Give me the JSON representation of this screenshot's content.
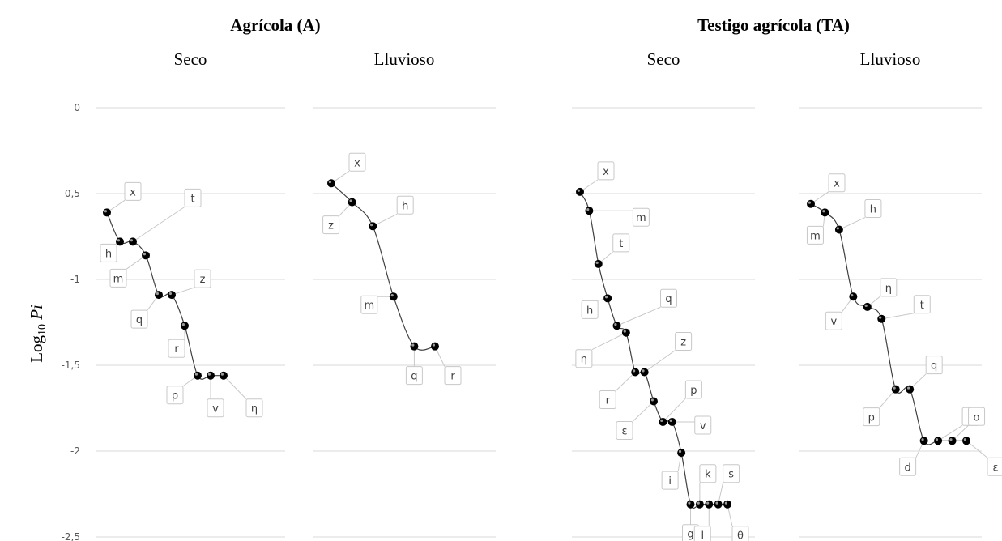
{
  "chart_data": {
    "type": "line",
    "ylabel_prefix": "Log",
    "ylabel_sub": "10",
    "ylabel_var": "Pi",
    "yticks": [
      "0",
      "-0,5",
      "-1",
      "-1,5",
      "-2",
      "-2,5"
    ],
    "ylim": [
      -2.5,
      0
    ],
    "grid": true,
    "groups": [
      {
        "title": "Agrícola (A)",
        "panels": [
          0,
          1
        ]
      },
      {
        "title": "Testigo agrícola (TA)",
        "panels": [
          2,
          3
        ]
      }
    ],
    "panels": [
      {
        "title": "Seco",
        "points": [
          {
            "label": "x",
            "y": -0.61
          },
          {
            "label": "h",
            "y": -0.78
          },
          {
            "label": "t",
            "y": -0.78
          },
          {
            "label": "m",
            "y": -0.86
          },
          {
            "label": "q",
            "y": -1.09
          },
          {
            "label": "z",
            "y": -1.09
          },
          {
            "label": "r",
            "y": -1.27
          },
          {
            "label": "p",
            "y": -1.56
          },
          {
            "label": "v",
            "y": -1.56
          },
          {
            "label": "η",
            "y": -1.56
          }
        ]
      },
      {
        "title": "Lluvioso",
        "points": [
          {
            "label": "x",
            "y": -0.44
          },
          {
            "label": "z",
            "y": -0.55
          },
          {
            "label": "h",
            "y": -0.69
          },
          {
            "label": "m",
            "y": -1.1
          },
          {
            "label": "q",
            "y": -1.39
          },
          {
            "label": "r",
            "y": -1.39
          }
        ]
      },
      {
        "title": "Seco",
        "points": [
          {
            "label": "x",
            "y": -0.49
          },
          {
            "label": "m",
            "y": -0.6
          },
          {
            "label": "t",
            "y": -0.91
          },
          {
            "label": "h",
            "y": -1.11
          },
          {
            "label": "q",
            "y": -1.27
          },
          {
            "label": "η",
            "y": -1.31
          },
          {
            "label": "r",
            "y": -1.54
          },
          {
            "label": "z",
            "y": -1.54
          },
          {
            "label": "ε",
            "y": -1.71
          },
          {
            "label": "p",
            "y": -1.83
          },
          {
            "label": "v",
            "y": -1.83
          },
          {
            "label": "i",
            "y": -2.01
          },
          {
            "label": "g",
            "y": -2.31
          },
          {
            "label": "k",
            "y": -2.31
          },
          {
            "label": "l",
            "y": -2.31
          },
          {
            "label": "s",
            "y": -2.31
          },
          {
            "label": "θ",
            "y": -2.31
          }
        ]
      },
      {
        "title": "Lluvioso",
        "points": [
          {
            "label": "x",
            "y": -0.56
          },
          {
            "label": "m",
            "y": -0.61
          },
          {
            "label": "h",
            "y": -0.71
          },
          {
            "label": "v",
            "y": -1.1
          },
          {
            "label": "η",
            "y": -1.16
          },
          {
            "label": "t",
            "y": -1.23
          },
          {
            "label": "p",
            "y": -1.64
          },
          {
            "label": "q",
            "y": -1.64
          },
          {
            "label": "d",
            "y": -1.94
          },
          {
            "label": "i",
            "y": -1.94
          },
          {
            "label": "o",
            "y": -1.94
          },
          {
            "label": "ε",
            "y": -1.94
          }
        ]
      }
    ]
  }
}
